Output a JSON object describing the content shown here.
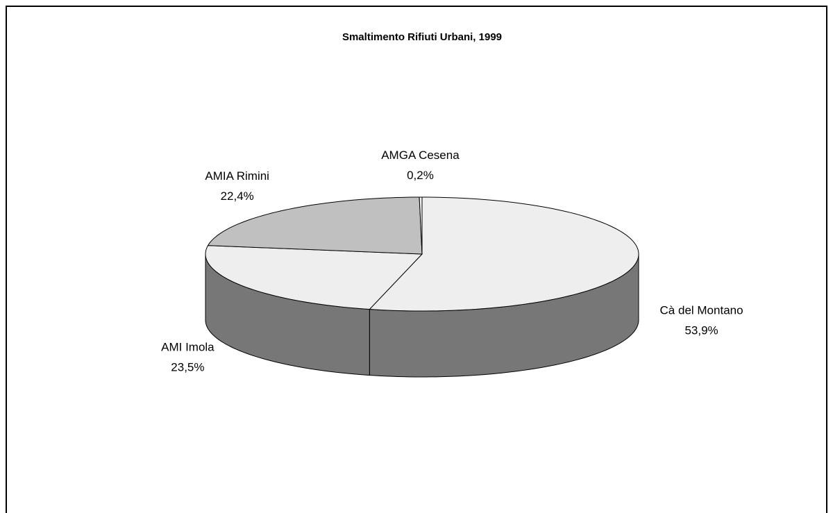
{
  "chart_data": {
    "type": "pie",
    "title": "Smaltimento Rifiuti Urbani, 1999",
    "categories": [
      "Cà del Montano",
      "AMI Imola",
      "AMIA Rimini",
      "AMGA Cesena"
    ],
    "values": [
      53.9,
      23.5,
      22.4,
      0.2
    ],
    "value_labels": [
      "53,9%",
      "23,5%",
      "22,4%",
      "0,2%"
    ],
    "colors": [
      "#eeeeee",
      "#eeeeee",
      "#c0c0c0",
      "#f4f4f4"
    ],
    "side_color": "#777777"
  }
}
